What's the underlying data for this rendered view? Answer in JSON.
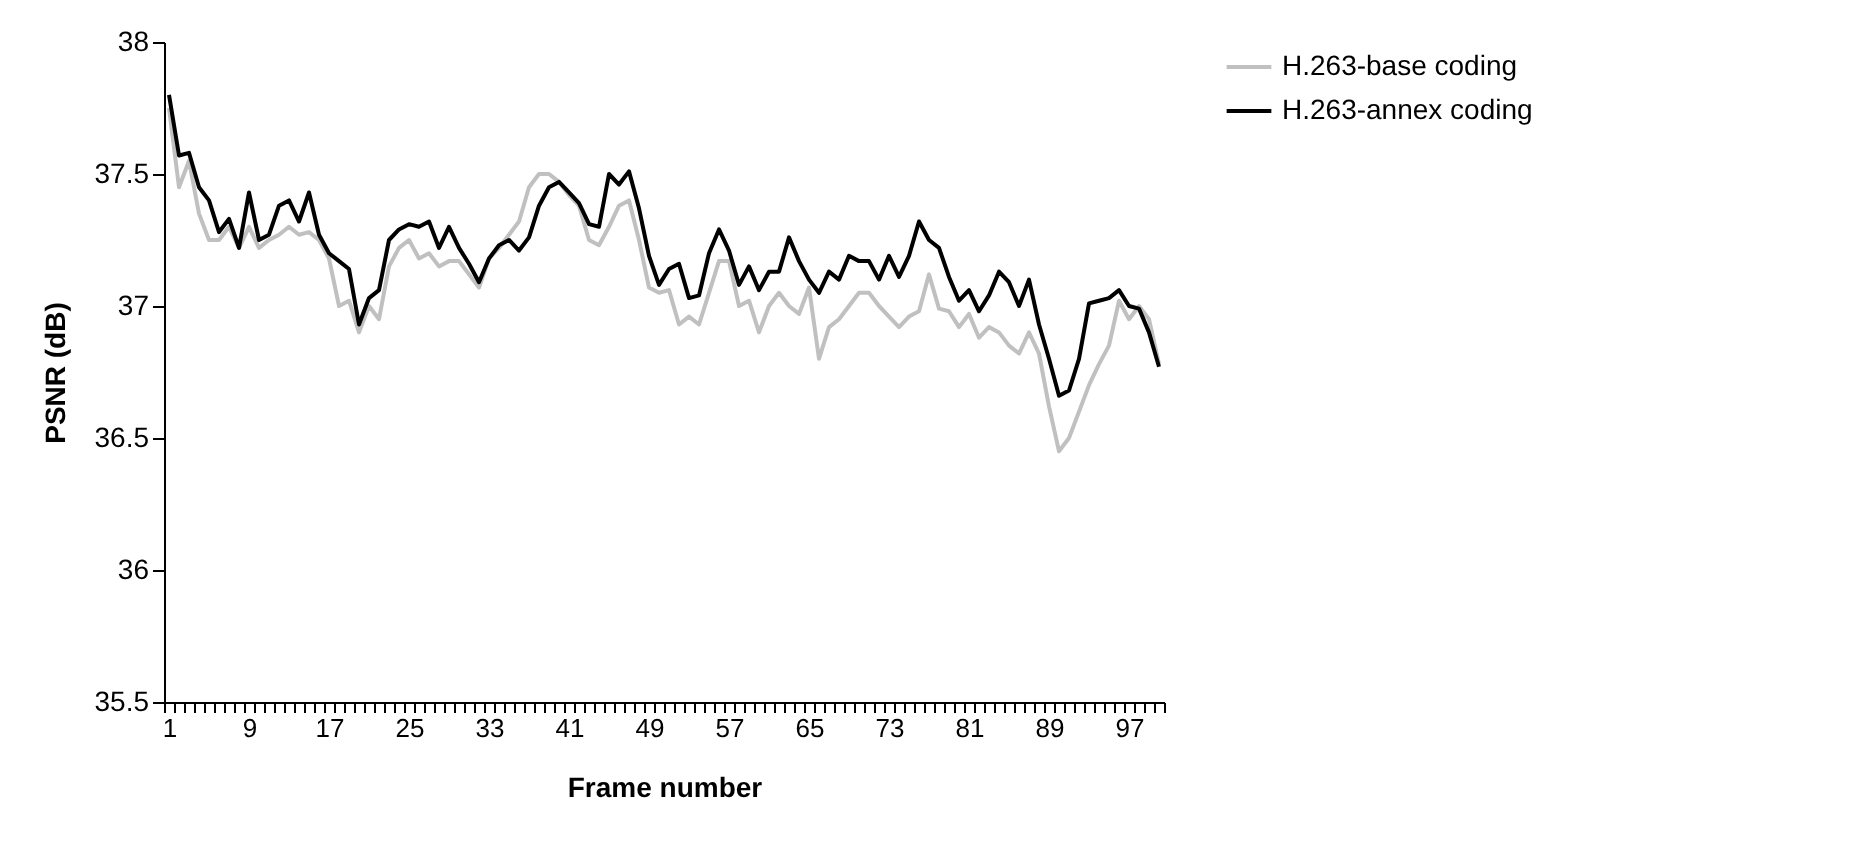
{
  "chart_data": {
    "type": "line",
    "xlabel": "Frame number",
    "ylabel": "PSNR (dB)",
    "categories": [
      "1",
      null,
      null,
      null,
      null,
      null,
      null,
      null,
      "9",
      null,
      null,
      null,
      null,
      null,
      null,
      null,
      "17",
      null,
      null,
      null,
      null,
      null,
      null,
      null,
      "25",
      null,
      null,
      null,
      null,
      null,
      null,
      null,
      "33",
      null,
      null,
      null,
      null,
      null,
      null,
      null,
      "41",
      null,
      null,
      null,
      null,
      null,
      null,
      null,
      "49",
      null,
      null,
      null,
      null,
      null,
      null,
      null,
      "57",
      null,
      null,
      null,
      null,
      null,
      null,
      null,
      "65",
      null,
      null,
      null,
      null,
      null,
      null,
      null,
      "73",
      null,
      null,
      null,
      null,
      null,
      null,
      null,
      "81",
      null,
      null,
      null,
      null,
      null,
      null,
      null,
      "89",
      null,
      null,
      null,
      null,
      null,
      null,
      null,
      "97",
      null,
      null,
      null
    ],
    "series": [
      {
        "name": "H.263-base coding",
        "color": "#c0c0c0",
        "values": [
          37.75,
          37.45,
          37.55,
          37.35,
          37.25,
          37.25,
          37.3,
          37.22,
          37.3,
          37.22,
          37.25,
          37.27,
          37.3,
          37.27,
          37.28,
          37.25,
          37.18,
          37.0,
          37.02,
          36.9,
          37.0,
          36.95,
          37.15,
          37.22,
          37.25,
          37.18,
          37.2,
          37.15,
          37.17,
          37.17,
          37.12,
          37.07,
          37.18,
          37.22,
          37.27,
          37.32,
          37.45,
          37.5,
          37.5,
          37.47,
          37.42,
          37.38,
          37.25,
          37.23,
          37.3,
          37.38,
          37.4,
          37.25,
          37.07,
          37.05,
          37.06,
          36.93,
          36.96,
          36.93,
          37.05,
          37.17,
          37.17,
          37.0,
          37.02,
          36.9,
          37.0,
          37.05,
          37.0,
          36.97,
          37.07,
          36.8,
          36.92,
          36.95,
          37.0,
          37.05,
          37.05,
          37.0,
          36.96,
          36.92,
          36.96,
          36.98,
          37.12,
          36.99,
          36.98,
          36.92,
          36.97,
          36.88,
          36.92,
          36.9,
          36.85,
          36.82,
          36.9,
          36.82,
          36.62,
          36.45,
          36.5,
          36.6,
          36.7,
          36.78,
          36.85,
          37.02,
          36.95,
          37.0,
          36.95,
          36.78
        ]
      },
      {
        "name": "H.263-annex coding",
        "color": "#000000",
        "values": [
          37.8,
          37.57,
          37.58,
          37.45,
          37.4,
          37.28,
          37.33,
          37.22,
          37.43,
          37.25,
          37.27,
          37.38,
          37.4,
          37.32,
          37.43,
          37.27,
          37.2,
          37.17,
          37.14,
          36.93,
          37.03,
          37.06,
          37.25,
          37.29,
          37.31,
          37.3,
          37.32,
          37.22,
          37.3,
          37.22,
          37.16,
          37.09,
          37.18,
          37.23,
          37.25,
          37.21,
          37.26,
          37.38,
          37.45,
          37.47,
          37.43,
          37.39,
          37.31,
          37.3,
          37.5,
          37.46,
          37.51,
          37.37,
          37.19,
          37.08,
          37.14,
          37.16,
          37.03,
          37.04,
          37.2,
          37.29,
          37.21,
          37.08,
          37.15,
          37.06,
          37.13,
          37.13,
          37.26,
          37.17,
          37.1,
          37.05,
          37.13,
          37.1,
          37.19,
          37.17,
          37.17,
          37.1,
          37.19,
          37.11,
          37.19,
          37.32,
          37.25,
          37.22,
          37.11,
          37.02,
          37.06,
          36.98,
          37.04,
          37.13,
          37.09,
          37.0,
          37.1,
          36.93,
          36.8,
          36.66,
          36.68,
          36.8,
          37.01,
          37.02,
          37.03,
          37.06,
          37.0,
          36.99,
          36.9,
          36.77
        ]
      }
    ],
    "ylim": [
      35.5,
      38
    ],
    "yticks": [
      35.5,
      36,
      36.5,
      37,
      37.5,
      38
    ],
    "grid": false,
    "legend": "top right"
  }
}
